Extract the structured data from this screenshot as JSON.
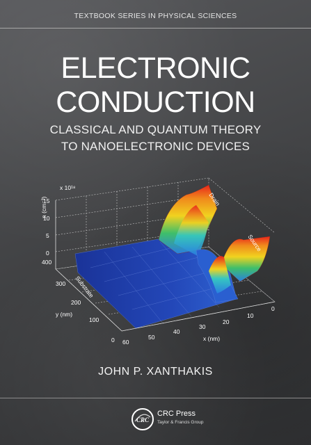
{
  "series": "TEXTBOOK SERIES IN PHYSICAL SCIENCES",
  "title": {
    "line1": "ELECTRONIC",
    "line2": "CONDUCTION"
  },
  "subtitle": {
    "line1": "CLASSICAL AND QUANTUM THEORY",
    "line2": "TO NANOELECTRONIC DEVICES"
  },
  "figure": {
    "exponent_label": "x 10¹⁸",
    "z_axis_label": "n (cm⁻³)",
    "z_ticks": [
      "15",
      "10",
      "5",
      "0"
    ],
    "y_axis_label": "y (nm)",
    "y_ticks": [
      "400",
      "300",
      "200",
      "100",
      "0"
    ],
    "x_axis_label": "x (nm)",
    "x_ticks": [
      "60",
      "50",
      "40",
      "30",
      "20",
      "10",
      "0"
    ],
    "region_labels": {
      "drain": "Drain",
      "source": "Source",
      "substrate": "Substrate"
    },
    "colors": {
      "surface_base": "#1f3ea3",
      "peak": "#e8251b",
      "mid": "#f1d21f",
      "green": "#3fbf6a"
    }
  },
  "author": "JOHN P. XANTHAKIS",
  "publisher": {
    "logo_text": "CRC",
    "name": "CRC Press",
    "tagline": "Taylor & Francis Group"
  },
  "colors": {
    "background": "#4a4b4c",
    "rule": "#a8a8a8",
    "text": "#ffffff"
  }
}
